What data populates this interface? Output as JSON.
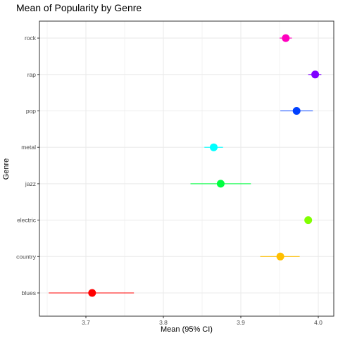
{
  "chart_data": {
    "type": "dot-errorbar",
    "title": "Mean of Popularity by Genre",
    "xlabel": "Mean (95% CI)",
    "ylabel": "Genre",
    "xlim": [
      3.64,
      4.02
    ],
    "x_ticks": [
      3.7,
      3.8,
      3.9,
      4.0
    ],
    "x_tick_labels": [
      "3.7",
      "3.8",
      "3.9",
      "4.0"
    ],
    "categories": [
      "blues",
      "country",
      "electric",
      "jazz",
      "metal",
      "pop",
      "rap",
      "rock"
    ],
    "points": [
      {
        "genre": "blues",
        "mean": 3.708,
        "low": 3.652,
        "high": 3.762,
        "color": "#FF0000"
      },
      {
        "genre": "country",
        "mean": 3.951,
        "low": 3.925,
        "high": 3.976,
        "color": "#FFBF00"
      },
      {
        "genre": "electric",
        "mean": 3.987,
        "low": 3.987,
        "high": 3.987,
        "color": "#80FF00"
      },
      {
        "genre": "jazz",
        "mean": 3.874,
        "low": 3.835,
        "high": 3.913,
        "color": "#00FF40"
      },
      {
        "genre": "metal",
        "mean": 3.865,
        "low": 3.853,
        "high": 3.877,
        "color": "#00FFFF"
      },
      {
        "genre": "pop",
        "mean": 3.972,
        "low": 3.951,
        "high": 3.993,
        "color": "#0040FF"
      },
      {
        "genre": "rap",
        "mean": 3.996,
        "low": 3.987,
        "high": 4.004,
        "color": "#8000FF"
      },
      {
        "genre": "rock",
        "mean": 3.958,
        "low": 3.95,
        "high": 3.966,
        "color": "#FF00BF"
      }
    ],
    "grid": true,
    "panel_border": "#333333",
    "grid_color": "#EBEBEB"
  }
}
